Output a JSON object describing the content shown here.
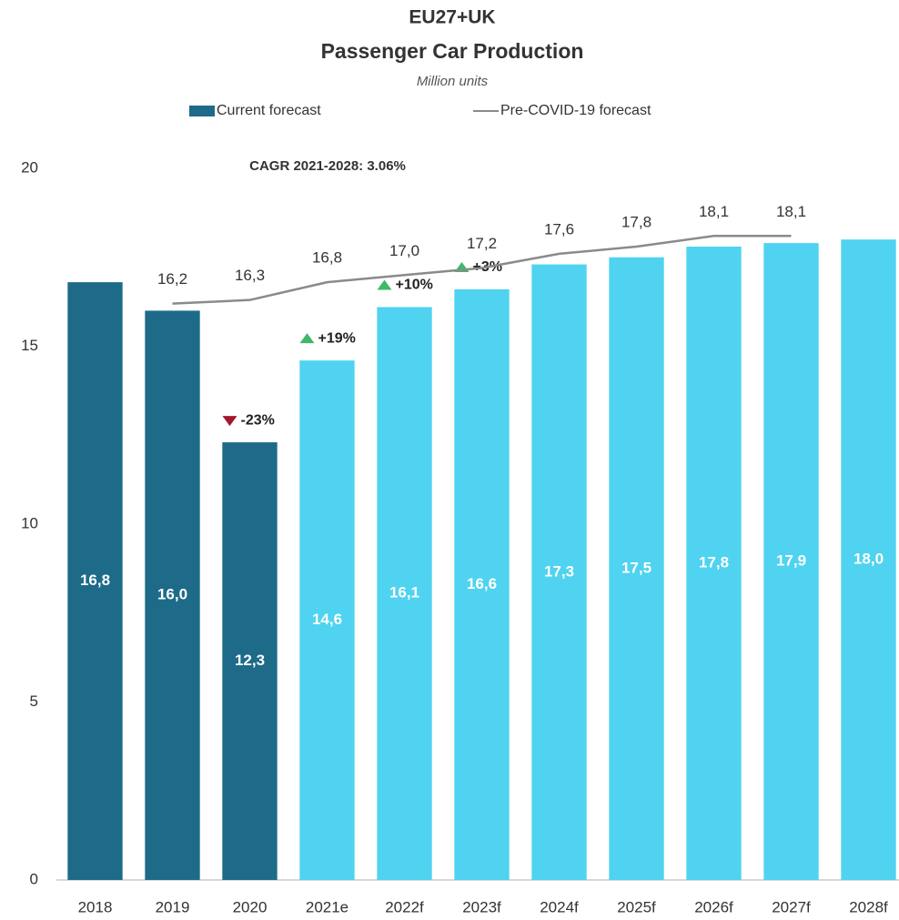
{
  "chart_data": {
    "type": "bar",
    "title": "EU27+UK",
    "subtitle": "Passenger Car Production",
    "unit_label": "Million units",
    "annotation": "CAGR 2021-2028: 3.06%",
    "categories": [
      "2018",
      "2019",
      "2020",
      "2021e",
      "2022f",
      "2023f",
      "2024f",
      "2025f",
      "2026f",
      "2027f",
      "2028f"
    ],
    "series": [
      {
        "name": "Current forecast",
        "type": "bar",
        "color": "#1d6b89",
        "bar_colors": [
          "#1d6b89",
          "#1d6b89",
          "#1d6b89",
          "#4fd3f0",
          "#4fd3f0",
          "#4fd3f0",
          "#4fd3f0",
          "#4fd3f0",
          "#4fd3f0",
          "#4fd3f0",
          "#4fd3f0"
        ],
        "values": [
          16.8,
          16.0,
          12.3,
          14.6,
          16.1,
          16.6,
          17.3,
          17.5,
          17.8,
          17.9,
          18.0
        ],
        "value_labels": [
          "16,8",
          "16,0",
          "12,3",
          "14,6",
          "16,1",
          "16,6",
          "17,3",
          "17,5",
          "17,8",
          "17,9",
          "18,0"
        ],
        "changes": [
          null,
          null,
          -23,
          19,
          10,
          3,
          null,
          null,
          null,
          null,
          null
        ],
        "change_labels": [
          null,
          null,
          "-23%",
          "+19%",
          "+10%",
          "+3%",
          null,
          null,
          null,
          null,
          null
        ]
      },
      {
        "name": "Pre-COVID-19 forecast",
        "type": "line",
        "color": "#8a8a8a",
        "values": [
          null,
          16.2,
          16.3,
          16.8,
          17.0,
          17.2,
          17.6,
          17.8,
          18.1,
          18.1,
          null
        ],
        "value_labels": [
          null,
          "16,2",
          "16,3",
          "16,8",
          "17,0",
          "17,2",
          "17,6",
          "17,8",
          "18,1",
          "18,1",
          null
        ]
      }
    ],
    "ylim": [
      0,
      20
    ],
    "yticks": [
      0,
      5,
      10,
      15,
      20
    ],
    "grid": false
  }
}
